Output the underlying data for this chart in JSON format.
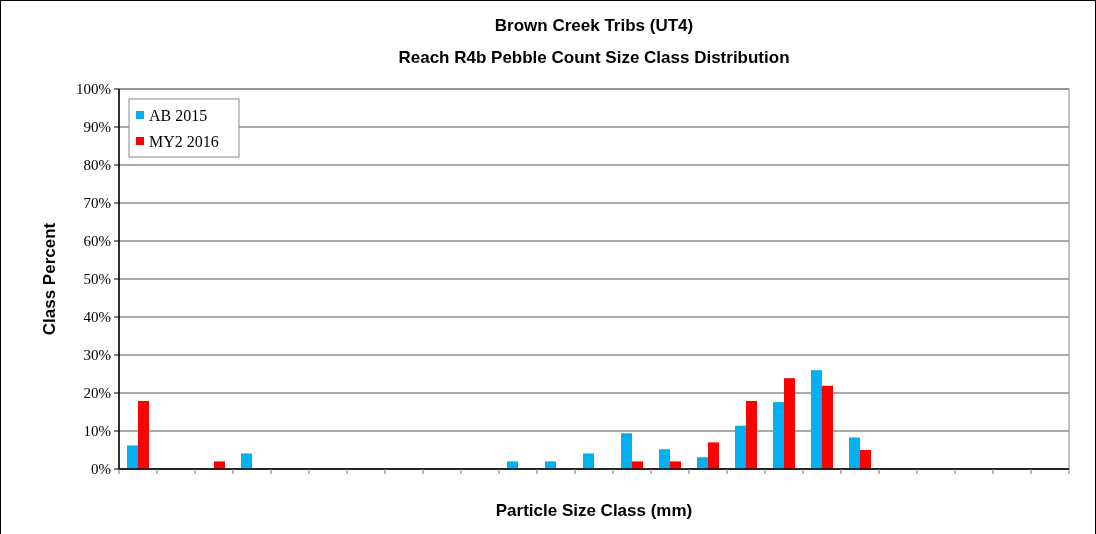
{
  "chart_data": {
    "type": "bar",
    "title": "Brown Creek Tribs (UT4)",
    "subtitle": "Reach R4b  Pebble Count Size Class Distribution",
    "xlabel": "Particle Size Class (mm)",
    "ylabel": "Class Percent",
    "categories": [
      null,
      null,
      null,
      null,
      null,
      null,
      null,
      null,
      null,
      null,
      null,
      null,
      null,
      null,
      null,
      null,
      null,
      null,
      null,
      null,
      null,
      null,
      null,
      null,
      null
    ],
    "series": [
      {
        "name": "AB 2015",
        "color": "#00b0f0",
        "values": [
          6.2,
          0,
          0,
          4.1,
          0,
          0,
          0,
          0,
          0,
          0,
          2,
          2,
          4.1,
          9.4,
          5.2,
          3.1,
          11.4,
          17.6,
          26,
          8.3,
          0,
          0,
          0,
          0,
          0
        ]
      },
      {
        "name": "MY2 2016",
        "color": "#ff0000",
        "values": [
          17.9,
          0,
          2,
          0,
          0,
          0,
          0,
          0,
          0,
          0,
          0,
          0,
          0,
          2,
          2,
          7,
          17.9,
          23.9,
          21.9,
          5,
          0,
          0,
          0,
          0,
          0
        ]
      }
    ],
    "ylim": [
      0,
      100
    ],
    "yticks": [
      {
        "value": 0,
        "label": "0%"
      },
      {
        "value": 10,
        "label": "10%"
      },
      {
        "value": 20,
        "label": "20%"
      },
      {
        "value": 30,
        "label": "30%"
      },
      {
        "value": 40,
        "label": "40%"
      },
      {
        "value": 50,
        "label": "50%"
      },
      {
        "value": 60,
        "label": "60%"
      },
      {
        "value": 70,
        "label": "70%"
      },
      {
        "value": 80,
        "label": "80%"
      },
      {
        "value": 90,
        "label": "90%"
      },
      {
        "value": 100,
        "label": "100%"
      }
    ],
    "grid": "y",
    "legend": "top left"
  }
}
